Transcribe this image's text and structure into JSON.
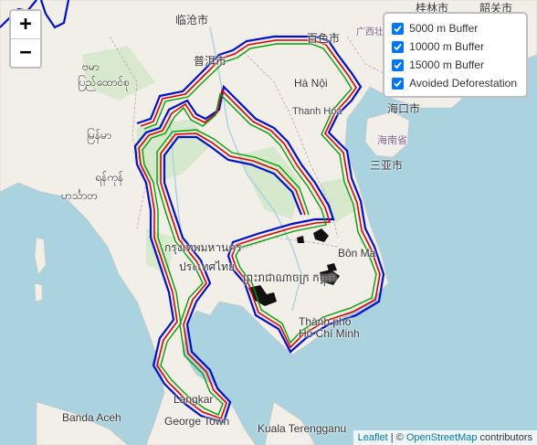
{
  "map": {
    "zoom_in_label": "+",
    "zoom_out_label": "−",
    "places": {
      "guilin": "桂林市",
      "shaoguan": "韶关市",
      "lincang": "临沧市",
      "baise": "百色市",
      "puer": "普洱市",
      "hanoi": "Hà Nội",
      "haikou": "海口市",
      "hainan": "海南省",
      "sanya": "三亚市",
      "bangkok": "กรุงเทพมหานคร",
      "thailand": "ประเทศไทย",
      "cambodia": "ព្រះរាជាណាចក្រ កម្ពុជា",
      "hcmc": "Thành phố Hồ Chí Minh",
      "banma": "Bôn Ma",
      "banda_aceh": "Banda Aceh",
      "georgetown": "George Town",
      "kuala_terengganu": "Kuala Terengganu",
      "langkawi": "Langkar",
      "thanh_hoa": "Thanh Hóa",
      "guangxi": "广西壮族自治区",
      "myanmar_1": "ဗမာ",
      "myanmar_2": "ပြည်ထောင်စု",
      "myanmar_3": "မြန်မာ",
      "myanmar_4": "ရန်ကုန်",
      "myanmar_5": "ဟင်္သာတ"
    }
  },
  "layers": {
    "items": [
      {
        "label": "5000 m Buffer",
        "checked": true
      },
      {
        "label": "10000 m Buffer",
        "checked": true
      },
      {
        "label": "15000 m Buffer",
        "checked": true
      },
      {
        "label": "Avoided Deforestation",
        "checked": true
      }
    ],
    "colors": {
      "buffer_5000": "#00a000",
      "buffer_10000": "#e00000",
      "buffer_15000": "#0010d0",
      "avoided": "#111111"
    }
  },
  "attribution": {
    "leaflet": "Leaflet",
    "separator": " | © ",
    "osm": "OpenStreetMap",
    "contributors": " contributors"
  }
}
